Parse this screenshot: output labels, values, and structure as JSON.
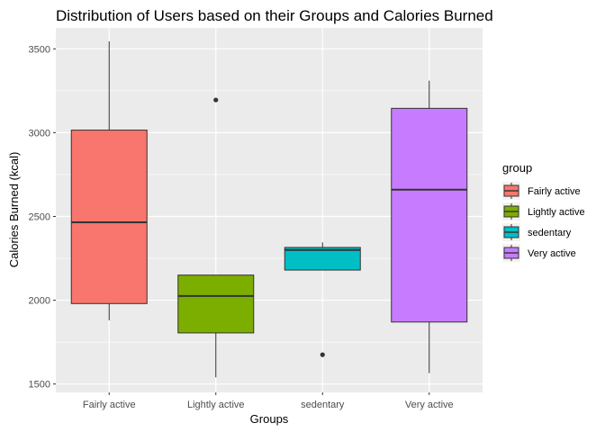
{
  "chart_data": {
    "type": "boxplot",
    "title": "Distribution of Users based on their Groups and Calories Burned",
    "xlabel": "Groups",
    "ylabel": "Calories Burned (kcal)",
    "ylim": [
      1450,
      3625
    ],
    "yticks": [
      1500,
      2000,
      2500,
      3000,
      3500
    ],
    "grid": true,
    "legend": {
      "title": "group",
      "position": "right"
    },
    "categories": [
      "Fairly active",
      "Lightly active",
      "sedentary",
      "Very active"
    ],
    "series": [
      {
        "name": "Fairly active",
        "color": "#F8766D",
        "min": 1880,
        "q1": 1980,
        "median": 2465,
        "q3": 3015,
        "max": 3545,
        "outliers": []
      },
      {
        "name": "Lightly active",
        "color": "#7CAE00",
        "min": 1540,
        "q1": 1805,
        "median": 2025,
        "q3": 2150,
        "max": 2150,
        "outliers": [
          3195
        ]
      },
      {
        "name": "sedentary",
        "color": "#00BFC4",
        "min": 2180,
        "q1": 2180,
        "median": 2300,
        "q3": 2315,
        "max": 2345,
        "outliers": [
          1675
        ]
      },
      {
        "name": "Very active",
        "color": "#C77CFF",
        "min": 1565,
        "q1": 1870,
        "median": 2660,
        "q3": 3145,
        "max": 3310,
        "outliers": []
      }
    ]
  }
}
